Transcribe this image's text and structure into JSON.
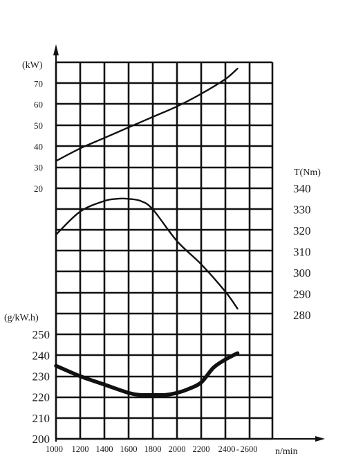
{
  "chart_data": {
    "type": "line",
    "xlabel": "n/min",
    "x_ticks": [
      "1000",
      "1200",
      "1400",
      "1600",
      "1800",
      "2000",
      "2200",
      "2400",
      "2600"
    ],
    "power_axis": {
      "unit": "(kW)",
      "ticks": [
        "70",
        "60",
        "50",
        "40",
        "30",
        "20"
      ]
    },
    "torque_axis": {
      "unit": "T(Nm)",
      "ticks": [
        "340",
        "330",
        "320",
        "310",
        "300",
        "290",
        "280"
      ]
    },
    "fuel_axis": {
      "unit": "(g/kW.h)",
      "ticks": [
        "250",
        "240",
        "230",
        "220",
        "210",
        "200"
      ]
    },
    "series": [
      {
        "key": "power",
        "axis": "power",
        "x": [
          1000,
          1200,
          1400,
          1600,
          1800,
          2000,
          2200,
          2400,
          2500
        ],
        "y": [
          33,
          39,
          44,
          49,
          54,
          59,
          65,
          72,
          77
        ]
      },
      {
        "key": "torque",
        "axis": "torque",
        "x": [
          1000,
          1200,
          1400,
          1500,
          1600,
          1700,
          1800,
          2000,
          2200,
          2400,
          2500
        ],
        "y": [
          318,
          329,
          334,
          335,
          335,
          334,
          330,
          315,
          304,
          291,
          283
        ]
      },
      {
        "key": "fuel",
        "axis": "fuel",
        "x": [
          1000,
          1200,
          1400,
          1600,
          1700,
          1800,
          1900,
          2000,
          2100,
          2200,
          2300,
          2400,
          2500
        ],
        "y": [
          235,
          230,
          226,
          222,
          221,
          221,
          221,
          222,
          224,
          227,
          234,
          238,
          241
        ]
      }
    ],
    "grid": true,
    "colors": {
      "lines": "#111111",
      "background": "#ffffff"
    }
  }
}
